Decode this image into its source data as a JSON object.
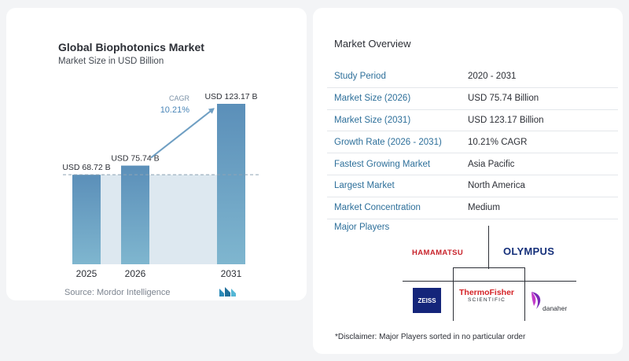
{
  "chart_data": {
    "type": "bar",
    "title": "Global Biophotonics Market",
    "subtitle": "Market Size in USD Billion",
    "categories": [
      "2025",
      "2026",
      "2031"
    ],
    "values": [
      68.72,
      75.74,
      123.17
    ],
    "value_labels": [
      "USD 68.72 B",
      "USD 75.74 B",
      "USD 123.17 B"
    ],
    "cagr_label": "CAGR",
    "cagr_value": "10.21%",
    "colors": {
      "bar_top": "#5b8fb9",
      "bar_bottom": "#7fb6cf",
      "band": "#dde8f0",
      "arrow": "#6f9fc3",
      "cagr_text": "#4a86b8"
    },
    "source": "Source:  Mordor Intelligence",
    "source_logo_icon": "mordor-logo-icon"
  },
  "overview": {
    "title": "Market Overview",
    "rows": [
      {
        "label": "Study Period",
        "value": "2020 - 2031"
      },
      {
        "label": "Market Size (2026)",
        "value": "USD 75.74 Billion"
      },
      {
        "label": "Market Size (2031)",
        "value": "USD 123.17 Billion"
      },
      {
        "label": "Growth Rate (2026 - 2031)",
        "value": "10.21% CAGR"
      },
      {
        "label": "Fastest Growing Market",
        "value": "Asia Pacific"
      },
      {
        "label": "Largest Market",
        "value": "North America"
      },
      {
        "label": "Market Concentration",
        "value": "Medium"
      }
    ]
  },
  "players": {
    "title": "Major Players",
    "hamamatsu": "HAMAMATSU",
    "olympus": "OLYMPUS",
    "zeiss": "ZEISS",
    "thermo_a": "ThermoFisher",
    "thermo_b": "SCIENTIFIC",
    "danaher": "danaher"
  },
  "disclaimer": "*Disclaimer: Major Players sorted in no particular order"
}
